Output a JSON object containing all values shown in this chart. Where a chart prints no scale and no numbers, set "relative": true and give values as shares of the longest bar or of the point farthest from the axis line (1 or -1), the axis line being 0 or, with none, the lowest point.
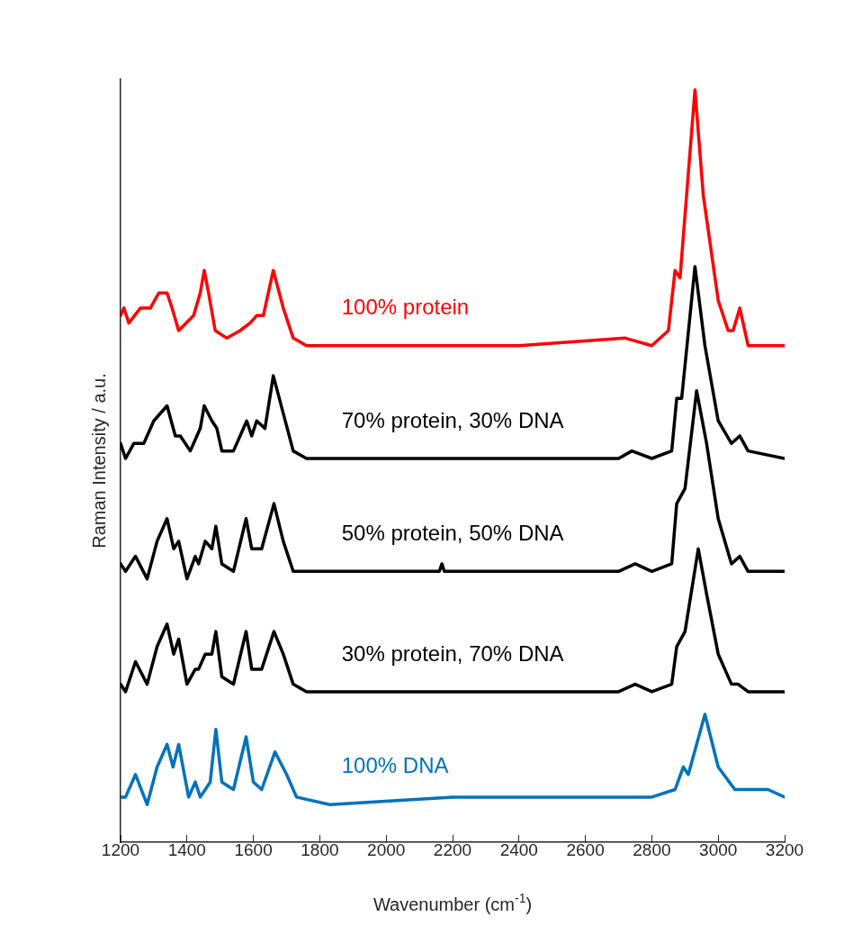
{
  "chart_data": {
    "type": "line",
    "relative": true,
    "xlabel": "Wavenumber (cm$^{-1}$)",
    "ylabel": "Raman Intensity / a.u.",
    "xlim": [
      1200,
      3200
    ],
    "xticks": [
      1200,
      1400,
      1600,
      1800,
      2000,
      2200,
      2400,
      2600,
      2800,
      3000,
      3200
    ],
    "grid": false,
    "legend": false,
    "marker": "none",
    "line_style": "solid",
    "series": [
      {
        "name": "100% protein",
        "color": "#ff0000",
        "x": [
          1200,
          1210,
          1225,
          1260,
          1290,
          1315,
          1340,
          1355,
          1375,
          1420,
          1440,
          1452,
          1465,
          1485,
          1520,
          1560,
          1590,
          1610,
          1630,
          1660,
          1690,
          1720,
          1760,
          2000,
          2400,
          2720,
          2800,
          2850,
          2870,
          2885,
          2930,
          2955,
          3000,
          3030,
          3045,
          3065,
          3090,
          3200
        ],
        "values": [
          0.7,
          0.71,
          0.69,
          0.71,
          0.71,
          0.73,
          0.73,
          0.71,
          0.68,
          0.7,
          0.73,
          0.76,
          0.73,
          0.68,
          0.67,
          0.68,
          0.69,
          0.7,
          0.7,
          0.76,
          0.71,
          0.67,
          0.66,
          0.66,
          0.66,
          0.67,
          0.66,
          0.68,
          0.76,
          0.75,
          1.0,
          0.86,
          0.72,
          0.68,
          0.68,
          0.71,
          0.66,
          0.66
        ]
      },
      {
        "name": "70% protein, 30% DNA",
        "color": "#000000",
        "x": [
          1200,
          1215,
          1240,
          1270,
          1300,
          1340,
          1365,
          1380,
          1410,
          1440,
          1452,
          1475,
          1490,
          1505,
          1540,
          1580,
          1595,
          1610,
          1635,
          1660,
          1690,
          1720,
          1760,
          2000,
          2700,
          2740,
          2800,
          2860,
          2875,
          2890,
          2930,
          2960,
          3000,
          3040,
          3065,
          3090,
          3200
        ],
        "values": [
          0.53,
          0.51,
          0.53,
          0.53,
          0.56,
          0.58,
          0.54,
          0.54,
          0.52,
          0.55,
          0.58,
          0.56,
          0.55,
          0.52,
          0.52,
          0.56,
          0.54,
          0.56,
          0.55,
          0.62,
          0.57,
          0.52,
          0.51,
          0.51,
          0.51,
          0.52,
          0.51,
          0.52,
          0.59,
          0.59,
          0.765,
          0.66,
          0.56,
          0.53,
          0.54,
          0.52,
          0.51
        ]
      },
      {
        "name": "50% protein, 50% DNA",
        "color": "#000000",
        "x": [
          1200,
          1215,
          1245,
          1280,
          1310,
          1340,
          1360,
          1375,
          1400,
          1425,
          1435,
          1455,
          1475,
          1487,
          1505,
          1540,
          1578,
          1595,
          1625,
          1662,
          1690,
          1720,
          1760,
          2160,
          2168,
          2175,
          2700,
          2750,
          2800,
          2860,
          2875,
          2900,
          2935,
          2965,
          3000,
          3040,
          3065,
          3090,
          3200
        ],
        "values": [
          0.37,
          0.36,
          0.38,
          0.35,
          0.4,
          0.43,
          0.39,
          0.4,
          0.35,
          0.38,
          0.37,
          0.4,
          0.39,
          0.42,
          0.37,
          0.36,
          0.43,
          0.39,
          0.39,
          0.45,
          0.4,
          0.36,
          0.36,
          0.36,
          0.37,
          0.36,
          0.36,
          0.37,
          0.36,
          0.37,
          0.45,
          0.47,
          0.6,
          0.53,
          0.43,
          0.37,
          0.38,
          0.36,
          0.36
        ]
      },
      {
        "name": "30% protein, 70% DNA",
        "color": "#000000",
        "x": [
          1200,
          1215,
          1245,
          1280,
          1310,
          1340,
          1360,
          1375,
          1400,
          1425,
          1435,
          1455,
          1475,
          1487,
          1505,
          1540,
          1578,
          1595,
          1625,
          1662,
          1690,
          1720,
          1760,
          2200,
          2700,
          2750,
          2800,
          2860,
          2875,
          2900,
          2940,
          2965,
          3000,
          3040,
          3060,
          3090,
          3200
        ],
        "values": [
          0.21,
          0.2,
          0.24,
          0.21,
          0.26,
          0.29,
          0.25,
          0.27,
          0.21,
          0.23,
          0.23,
          0.25,
          0.25,
          0.28,
          0.22,
          0.21,
          0.28,
          0.23,
          0.23,
          0.28,
          0.25,
          0.21,
          0.2,
          0.2,
          0.2,
          0.21,
          0.2,
          0.21,
          0.26,
          0.28,
          0.39,
          0.33,
          0.25,
          0.21,
          0.21,
          0.2,
          0.2
        ]
      },
      {
        "name": "100% DNA",
        "color": "#0072bd",
        "x": [
          1200,
          1215,
          1245,
          1280,
          1310,
          1340,
          1358,
          1375,
          1405,
          1425,
          1440,
          1470,
          1487,
          1505,
          1540,
          1578,
          1600,
          1625,
          1665,
          1700,
          1730,
          1830,
          2200,
          2700,
          2750,
          2800,
          2870,
          2895,
          2910,
          2960,
          3000,
          3050,
          3090,
          3150,
          3200
        ],
        "values": [
          0.06,
          0.06,
          0.09,
          0.05,
          0.1,
          0.13,
          0.1,
          0.13,
          0.06,
          0.08,
          0.06,
          0.08,
          0.15,
          0.08,
          0.07,
          0.14,
          0.08,
          0.07,
          0.12,
          0.09,
          0.06,
          0.05,
          0.06,
          0.06,
          0.06,
          0.06,
          0.07,
          0.1,
          0.09,
          0.17,
          0.1,
          0.07,
          0.07,
          0.07,
          0.06
        ]
      }
    ]
  }
}
